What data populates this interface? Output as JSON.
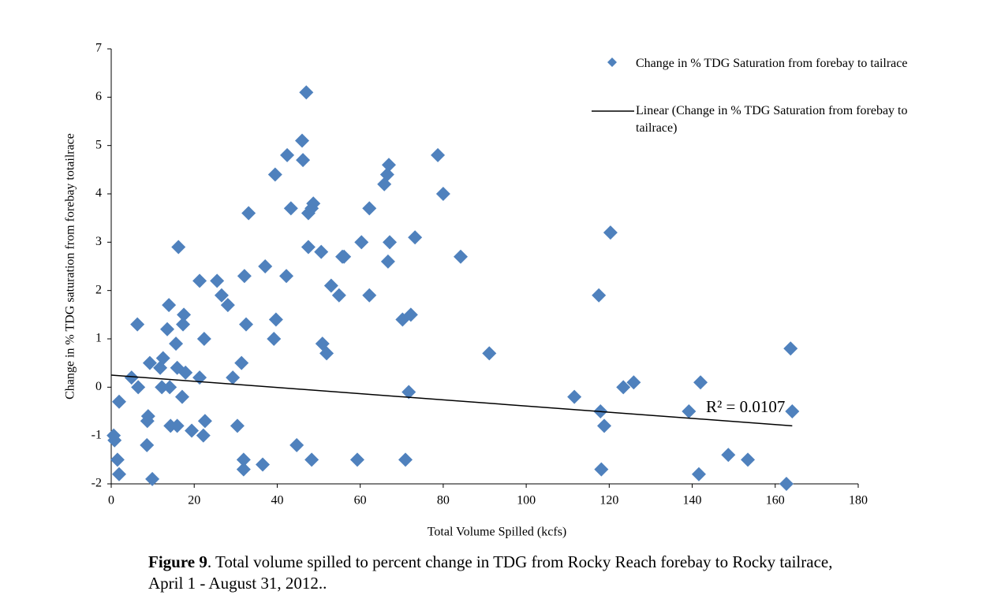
{
  "chart_data": {
    "type": "scatter",
    "y_label": "Change in % TDG saturation from forebay totailrace",
    "x_label": "Total Volume Spilled (kcfs)",
    "xlim": [
      0,
      180
    ],
    "xticks": [
      0,
      20,
      40,
      60,
      80,
      100,
      120,
      140,
      160,
      180
    ],
    "ylim": [
      -2,
      7
    ],
    "yticks": [
      -2,
      -1,
      0,
      1,
      2,
      3,
      4,
      5,
      6,
      7
    ],
    "grid": false,
    "legend": "top-right",
    "series": [
      {
        "name": "Change in % TDG Saturation from forebay to tailrace",
        "color": "#4f81bd",
        "x": [
          0.6,
          0.8,
          1.5,
          1.9,
          1.9,
          4.9,
          6.3,
          6.5,
          8.7,
          8.9,
          8.6,
          9.3,
          9.9,
          11.8,
          12.5,
          12.2,
          13.5,
          13.9,
          14.1,
          14.3,
          15.9,
          15.6,
          16.2,
          15.9,
          17.1,
          17.3,
          17.5,
          17.9,
          19.4,
          21.3,
          21.3,
          22.2,
          22.4,
          22.6,
          25.5,
          26.6,
          28.1,
          29.3,
          30.4,
          31.4,
          31.9,
          32.1,
          31.9,
          32.5,
          33.1,
          36.5,
          37.1,
          39.2,
          39.7,
          39.5,
          42.2,
          42.4,
          43.3,
          44.7,
          46.0,
          46.2,
          47.0,
          47.5,
          47.5,
          48.3,
          48.7,
          48.3,
          50.6,
          50.9,
          51.9,
          53.0,
          54.9,
          55.7,
          56.1,
          59.3,
          60.3,
          62.2,
          62.2,
          65.8,
          66.5,
          66.9,
          66.7,
          67.1,
          70.2,
          70.9,
          71.7,
          72.2,
          73.2,
          78.7,
          80.0,
          84.2,
          91.1,
          111.6,
          117.5,
          117.9,
          118.1,
          118.8,
          120.3,
          123.4,
          125.9,
          139.2,
          142.0,
          141.6,
          148.7,
          153.4,
          162.7,
          163.7,
          164.1
        ],
        "values": [
          -1.0,
          -1.1,
          -1.5,
          -1.8,
          -0.3,
          0.2,
          1.3,
          0,
          -0.7,
          -0.6,
          -1.2,
          0.5,
          -1.9,
          0.4,
          0.6,
          0,
          1.2,
          1.7,
          0,
          -0.8,
          -0.8,
          0.9,
          2.9,
          0.4,
          -0.2,
          1.3,
          1.5,
          0.3,
          -0.9,
          2.2,
          0.2,
          -1.0,
          1.0,
          -0.7,
          2.2,
          1.9,
          1.7,
          0.2,
          -0.8,
          0.5,
          -1.5,
          2.3,
          -1.7,
          1.3,
          3.6,
          -1.6,
          2.5,
          1.0,
          1.4,
          4.4,
          2.3,
          4.8,
          3.7,
          -1.2,
          5.1,
          4.7,
          6.1,
          3.6,
          2.9,
          -1.5,
          3.8,
          3.7,
          2.8,
          0.9,
          0.7,
          2.1,
          1.9,
          2.7,
          2.7,
          -1.5,
          3.0,
          3.7,
          1.9,
          4.2,
          4.4,
          4.6,
          2.6,
          3.0,
          1.4,
          -1.5,
          -0.1,
          1.5,
          3.1,
          4.8,
          4.0,
          2.7,
          0.7,
          -0.2,
          1.9,
          -0.5,
          -1.7,
          -0.8,
          3.2,
          0,
          0.1,
          -0.5,
          0.1,
          -1.8,
          -1.4,
          -1.5,
          -2.0,
          0.8,
          -0.5
        ]
      }
    ],
    "trendline": {
      "name": "Linear (Change in % TDG Saturation from forebay to tailrace)",
      "color": "#000000",
      "x": [
        0,
        164.1
      ],
      "values": [
        0.25,
        -0.8
      ]
    },
    "annotation": "R² = 0.0107",
    "caption_label": "Figure 9",
    "caption_text": ". Total volume spilled to percent change in TDG from Rocky Reach forebay to Rocky tailrace, April 1 - August 31, 2012.."
  }
}
